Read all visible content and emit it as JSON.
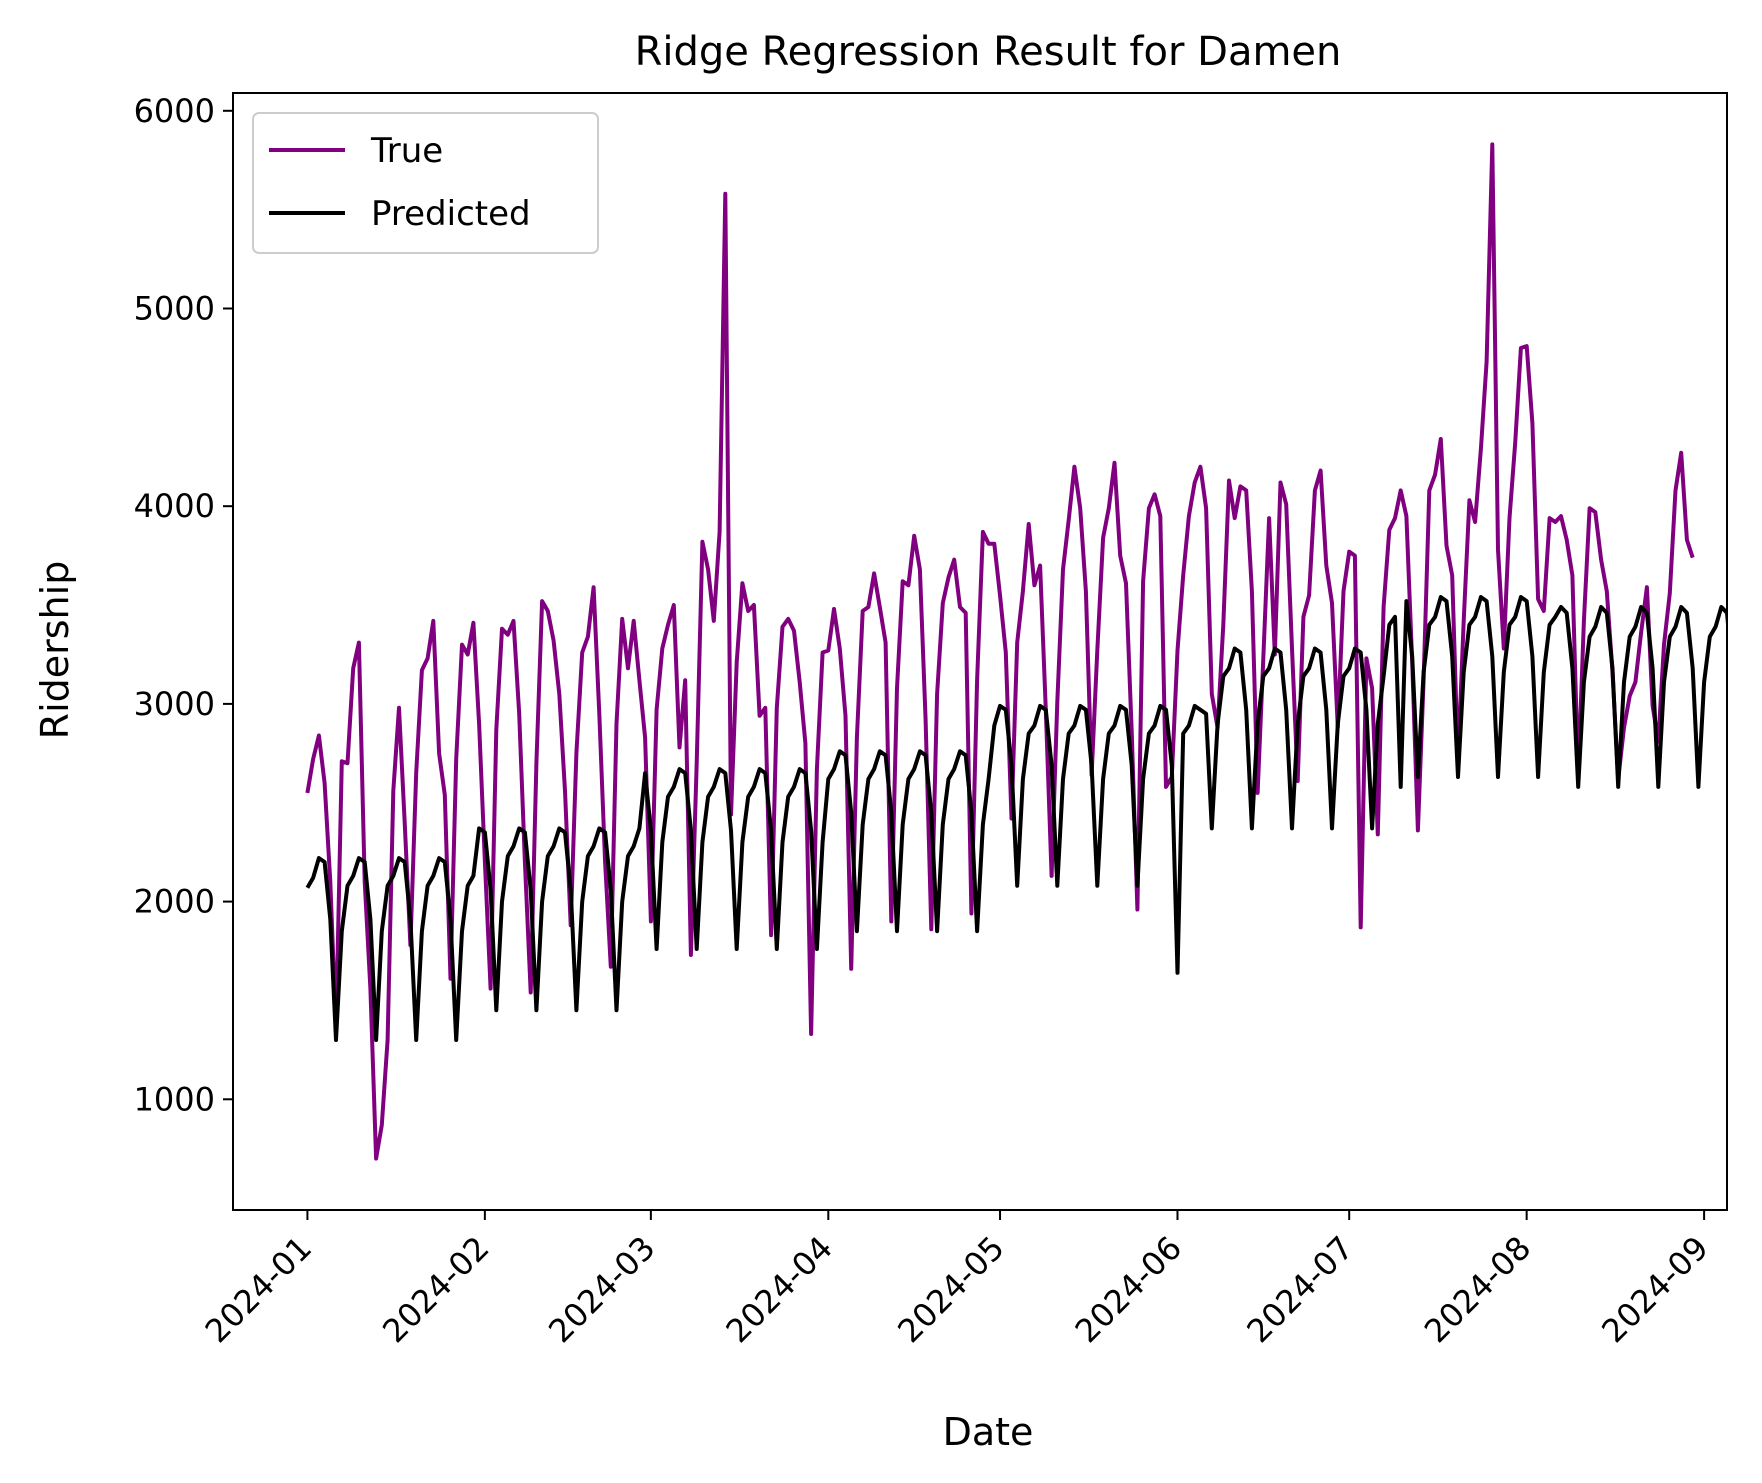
{
  "chart_data": {
    "type": "line",
    "title": "Ridge Regression Result for Damen",
    "xlabel": "Date",
    "ylabel": "Ridership",
    "x_range": [
      "2023-12-19",
      "2024-09-05"
    ],
    "ylim": [
      440,
      6090
    ],
    "x_ticks": [
      "2024-01-01",
      "2024-02-01",
      "2024-03-01",
      "2024-04-01",
      "2024-05-01",
      "2024-06-01",
      "2024-07-01",
      "2024-08-01",
      "2024-09-01"
    ],
    "x_tick_labels": [
      "2024-01",
      "2024-02",
      "2024-03",
      "2024-04",
      "2024-05",
      "2024-06",
      "2024-07",
      "2024-08",
      "2024-09"
    ],
    "y_ticks": [
      1000,
      2000,
      3000,
      4000,
      5000,
      6000
    ],
    "y_tick_labels": [
      "1000",
      "2000",
      "3000",
      "4000",
      "5000",
      "6000"
    ],
    "grid": false,
    "legend_position": "upper-left",
    "legend": [
      "True",
      "Predicted"
    ],
    "x_start": "2024-01-01",
    "x_frequency": "daily",
    "series": [
      {
        "name": "True",
        "color": "#800080",
        "values": [
          2550,
          2720,
          2840,
          2600,
          2100,
          1350,
          2710,
          2700,
          3180,
          3310,
          2100,
          1560,
          700,
          870,
          1300,
          2560,
          2980,
          2400,
          1780,
          2650,
          3170,
          3230,
          3420,
          2750,
          2540,
          1610,
          2720,
          3300,
          3250,
          3410,
          2900,
          2200,
          1560,
          2870,
          3380,
          3350,
          3420,
          2950,
          2200,
          1540,
          2700,
          3520,
          3470,
          3320,
          3050,
          2560,
          1880,
          2750,
          3260,
          3340,
          3590,
          2950,
          2200,
          1670,
          2900,
          3430,
          3180,
          3420,
          3120,
          2830,
          1900,
          2970,
          3280,
          3400,
          3500,
          2780,
          3120,
          1730,
          2700,
          3820,
          3680,
          3420,
          3870,
          5580,
          2440,
          3210,
          3610,
          3470,
          3500,
          2940,
          2980,
          1830,
          2980,
          3390,
          3430,
          3370,
          3110,
          2800,
          1330,
          2670,
          3260,
          3270,
          3480,
          3280,
          2940,
          1660,
          2830,
          3470,
          3490,
          3660,
          3490,
          3310,
          1900,
          3080,
          3620,
          3600,
          3850,
          3680,
          2920,
          1860,
          3050,
          3510,
          3640,
          3730,
          3490,
          3460,
          1940,
          3120,
          3870,
          3810,
          3810,
          3550,
          3260,
          2420,
          3310,
          3570,
          3910,
          3600,
          3700,
          2970,
          2130,
          3010,
          3680,
          3930,
          4200,
          3990,
          3570,
          2640,
          3270,
          3840,
          3990,
          4220,
          3750,
          3610,
          2860,
          1960,
          3620,
          3990,
          4060,
          3950,
          2580,
          2630,
          3270,
          3650,
          3950,
          4120,
          4200,
          3990,
          3050,
          2880,
          3400,
          4130,
          3940,
          4100,
          4080,
          3570,
          2550,
          3230,
          3940,
          3250,
          4120,
          4010,
          3280,
          2610,
          3440,
          3550,
          4080,
          4180,
          3700,
          3510,
          2880,
          3570,
          3770,
          3750,
          1870,
          3230,
          3080,
          2340,
          3490,
          3880,
          3940,
          4080,
          3950,
          3210,
          2360,
          3120,
          4080,
          4160,
          4340,
          3800,
          3650,
          2700,
          3420,
          4030,
          3920,
          4290,
          4730,
          5830,
          3780,
          3280,
          3940,
          4320,
          4800,
          4810,
          4420,
          3530,
          3470,
          3940,
          3920,
          3950,
          3830,
          3650,
          2630,
          3420,
          3990,
          3970,
          3730,
          3570,
          3160,
          2620,
          2880,
          3040,
          3110,
          3360,
          3590,
          2990,
          2810,
          3300,
          3560,
          4080,
          4270,
          3830,
          3740
        ]
      },
      {
        "name": "Predicted",
        "color": "#000000",
        "values": [
          2070,
          2120,
          2220,
          2200,
          1910,
          1300,
          1850,
          2080,
          2130,
          2220,
          2200,
          1910,
          1300,
          1850,
          2080,
          2130,
          2220,
          2200,
          1910,
          1300,
          1850,
          2080,
          2130,
          2220,
          2200,
          1910,
          1300,
          1850,
          2080,
          2130,
          2370,
          2350,
          2060,
          1450,
          2000,
          2230,
          2280,
          2370,
          2350,
          2060,
          1450,
          2000,
          2230,
          2280,
          2370,
          2350,
          2060,
          1450,
          2000,
          2230,
          2280,
          2370,
          2350,
          2060,
          1450,
          2000,
          2230,
          2280,
          2370,
          2650,
          2360,
          1760,
          2300,
          2530,
          2580,
          2670,
          2650,
          2360,
          1760,
          2300,
          2530,
          2580,
          2670,
          2650,
          2360,
          1760,
          2300,
          2530,
          2580,
          2670,
          2650,
          2360,
          1760,
          2300,
          2530,
          2580,
          2670,
          2650,
          2360,
          1760,
          2300,
          2620,
          2670,
          2760,
          2740,
          2450,
          1850,
          2390,
          2620,
          2670,
          2760,
          2740,
          2450,
          1850,
          2390,
          2620,
          2670,
          2760,
          2740,
          2450,
          1850,
          2390,
          2620,
          2670,
          2760,
          2740,
          2450,
          1850,
          2390,
          2620,
          2890,
          2990,
          2970,
          2690,
          2080,
          2620,
          2850,
          2890,
          2990,
          2970,
          2690,
          2080,
          2620,
          2850,
          2890,
          2990,
          2970,
          2690,
          2080,
          2620,
          2850,
          2890,
          2990,
          2970,
          2690,
          2080,
          2620,
          2850,
          2890,
          2990,
          2970,
          2690,
          1640,
          2850,
          2890,
          2990,
          2970,
          2950,
          2370,
          2900,
          3140,
          3180,
          3280,
          3260,
          2970,
          2370,
          2900,
          3140,
          3180,
          3280,
          3260,
          2970,
          2370,
          2900,
          3140,
          3180,
          3280,
          3260,
          2970,
          2370,
          2900,
          3140,
          3180,
          3280,
          3260,
          2970,
          2370,
          2900,
          3140,
          3400,
          3440,
          2580,
          3520,
          3240,
          2630,
          3160,
          3400,
          3440,
          3540,
          3520,
          3240,
          2630,
          3160,
          3400,
          3440,
          3540,
          3520,
          3240,
          2630,
          3160,
          3400,
          3440,
          3540,
          3520,
          3240,
          2630,
          3160,
          3400,
          3440,
          3490,
          3460,
          3180,
          2580,
          3110,
          3340,
          3390,
          3490,
          3460,
          3180,
          2580,
          3110,
          3340,
          3390,
          3490,
          3460,
          3180,
          2580,
          3110,
          3340,
          3390,
          3490,
          3460,
          3180,
          2580,
          3110,
          3340,
          3390,
          3490,
          3460,
          3140
        ]
      }
    ]
  }
}
